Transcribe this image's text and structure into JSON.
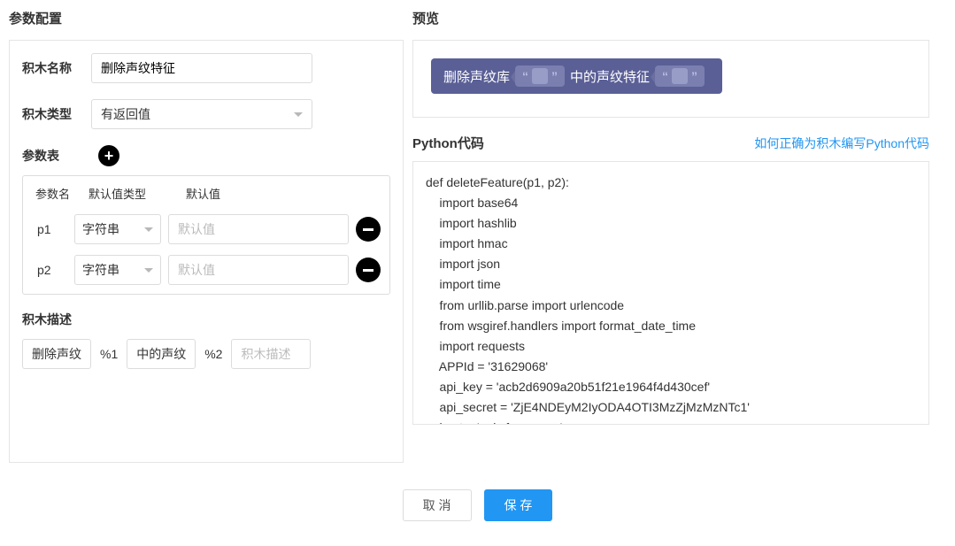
{
  "left": {
    "title": "参数配置",
    "name_label": "积木名称",
    "name_value": "删除声纹特征",
    "type_label": "积木类型",
    "type_value": "有返回值",
    "param_label": "参数表",
    "cols": {
      "name": "参数名",
      "type": "默认值类型",
      "default": "默认值"
    },
    "params": [
      {
        "name": "p1",
        "type": "字符串",
        "placeholder": "默认值"
      },
      {
        "name": "p2",
        "type": "字符串",
        "placeholder": "默认值"
      }
    ],
    "desc_label": "积木描述",
    "desc_parts": [
      {
        "kind": "text",
        "value": "删除声纹"
      },
      {
        "kind": "ref",
        "value": "%1"
      },
      {
        "kind": "text",
        "value": "中的声纹"
      },
      {
        "kind": "ref",
        "value": "%2"
      },
      {
        "kind": "input",
        "placeholder": "积木描述"
      }
    ]
  },
  "right": {
    "preview_title": "预览",
    "block": {
      "part1": "删除声纹库",
      "part2": "中的声纹特征"
    },
    "code_title": "Python代码",
    "code_link": "如何正确为积木编写Python代码",
    "code": "def deleteFeature(p1, p2):\n    import base64\n    import hashlib\n    import hmac\n    import json\n    import time\n    from urllib.parse import urlencode\n    from wsgiref.handlers import format_date_time\n    import requests\n    APPId = '31629068'\n    api_key = 'acb2d6909a20b51f21e1964f4d430cef'\n    api_secret = 'ZjE4NDEyM2IyODA4OTI3MzZjMzMzNTc1'\n    host = 'api.xf-yun.com'"
  },
  "footer": {
    "cancel": "取 消",
    "save": "保 存"
  },
  "colors": {
    "block_bg": "#5a5f96",
    "block_slot": "#7a7fb0",
    "primary": "#2196f3",
    "border": "#dcdcdc"
  }
}
